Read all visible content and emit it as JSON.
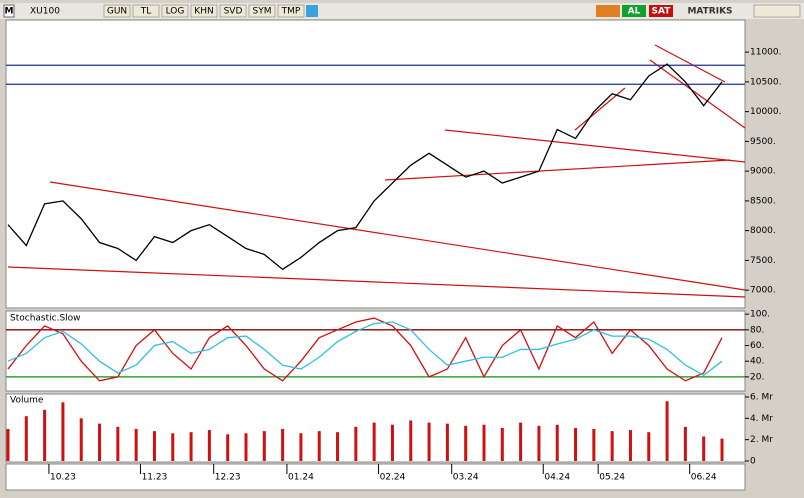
{
  "toolbar": {
    "logo": "M",
    "symbol": "XU100",
    "buttons": [
      "GUN",
      "TL",
      "LOG",
      "KHN",
      "SVD",
      "SYM",
      "TMP"
    ],
    "buy": "AL",
    "sell": "SAT",
    "brand": "MATRIKS"
  },
  "chart_data": [
    {
      "type": "line",
      "categories": [
        null,
        null,
        null,
        "10.23",
        null,
        null,
        null,
        null,
        "11.23",
        null,
        null,
        null,
        "12.23",
        null,
        null,
        null,
        "01.24",
        null,
        null,
        null,
        null,
        "02.24",
        null,
        null,
        null,
        "03.24",
        null,
        null,
        null,
        null,
        "04.24",
        null,
        null,
        "05.24",
        null,
        null,
        null,
        null,
        "06.24",
        null
      ],
      "values": [
        8100,
        7750,
        8450,
        8500,
        8200,
        7800,
        7700,
        7500,
        7900,
        7800,
        8000,
        8100,
        7900,
        7700,
        7600,
        7350,
        7550,
        7800,
        8000,
        8050,
        8500,
        8800,
        9100,
        9300,
        9100,
        8900,
        9000,
        8800,
        8900,
        9000,
        9700,
        9550,
        10000,
        10300,
        10200,
        10600,
        10800,
        10500,
        10100,
        10500
      ],
      "color": "#000000",
      "levels": [
        10780,
        10460
      ],
      "level_color": "#1f2f9f",
      "ylim": [
        6700,
        11540
      ],
      "yticks": [
        {
          "value": 11000,
          "label": "11000."
        },
        {
          "value": 10500,
          "label": "10500."
        },
        {
          "value": 10000,
          "label": "10000."
        },
        {
          "value": 9500,
          "label": "9500."
        },
        {
          "value": 9000,
          "label": "9000."
        },
        {
          "value": 8500,
          "label": "8500."
        },
        {
          "value": 8000,
          "label": "8000."
        },
        {
          "value": 7500,
          "label": "7500."
        },
        {
          "value": 7000,
          "label": "7000."
        }
      ],
      "grid": false
    },
    {
      "type": "line",
      "title": "Stochastic.Slow",
      "series": [
        {
          "color": "#d01010",
          "values": [
            30,
            60,
            85,
            75,
            40,
            15,
            20,
            60,
            80,
            50,
            30,
            70,
            85,
            60,
            30,
            15,
            40,
            70,
            80,
            90,
            95,
            85,
            60,
            20,
            30,
            70,
            20,
            60,
            80,
            30,
            85,
            70,
            90,
            50,
            80,
            60,
            30,
            15,
            25,
            70
          ]
        },
        {
          "color": "#30c0e0",
          "values": [
            40,
            50,
            70,
            78,
            62,
            40,
            25,
            35,
            60,
            65,
            50,
            55,
            70,
            72,
            55,
            35,
            30,
            45,
            65,
            78,
            88,
            90,
            80,
            55,
            35,
            40,
            45,
            45,
            55,
            55,
            62,
            68,
            80,
            72,
            72,
            68,
            55,
            35,
            22,
            40
          ]
        }
      ],
      "levels": [
        80,
        20
      ],
      "level_colors": [
        "#8b0000",
        "#109010"
      ],
      "ylim": [
        2,
        104
      ],
      "yticks": [
        {
          "value": 100,
          "label": "100."
        },
        {
          "value": 80,
          "label": "80."
        },
        {
          "value": 60,
          "label": "60."
        },
        {
          "value": 40,
          "label": "40."
        },
        {
          "value": 20,
          "label": "20."
        }
      ],
      "grid": false
    },
    {
      "type": "bar",
      "title": "Volume",
      "values": [
        3000000000,
        4200000000,
        4800000000,
        5500000000,
        4000000000,
        3500000000,
        3200000000,
        3000000000,
        2800000000,
        2600000000,
        2700000000,
        2900000000,
        2500000000,
        2600000000,
        2800000000,
        3000000000,
        2600000000,
        2800000000,
        2700000000,
        3200000000,
        3600000000,
        3400000000,
        3800000000,
        3600000000,
        3500000000,
        3300000000,
        3400000000,
        3100000000,
        3600000000,
        3300000000,
        3400000000,
        3100000000,
        3000000000,
        2800000000,
        2900000000,
        2700000000,
        5600000000,
        3200000000,
        2300000000,
        2100000000
      ],
      "color": "#d01010",
      "ylim": [
        0,
        6280000000
      ],
      "yticks": [
        {
          "value": 6000000000,
          "label": "6. Mr"
        },
        {
          "value": 4000000000,
          "label": "4. Mr"
        },
        {
          "value": 2000000000,
          "label": "2. Mr"
        },
        0
      ],
      "grid": false
    }
  ]
}
